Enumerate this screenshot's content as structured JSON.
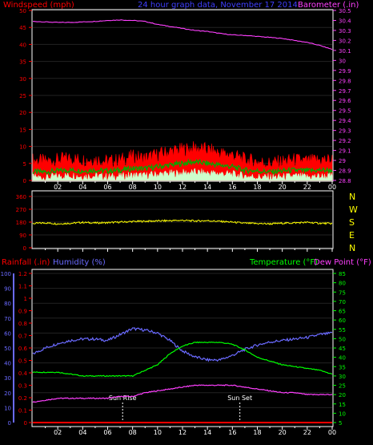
{
  "chart_data": [
    {
      "type": "line",
      "panel": "wind-barometer",
      "title": "24 hour graph data, November 17 2014",
      "left_axis_label": "Windspeed (mph)",
      "right_axis_label": "Barometer (.in)",
      "x_ticks": [
        "02",
        "04",
        "06",
        "08",
        "10",
        "12",
        "14",
        "16",
        "18",
        "20",
        "22",
        "00"
      ],
      "ylim_left": [
        0,
        50
      ],
      "left_ticks": [
        0,
        5,
        10,
        15,
        20,
        25,
        30,
        35,
        40,
        45,
        50
      ],
      "ylim_right": [
        28.8,
        30.5
      ],
      "right_ticks": [
        "28.8",
        "28.9",
        "29",
        "29.1",
        "29.2",
        "29.3",
        "29.4",
        "29.5",
        "29.6",
        "29.7",
        "29.8",
        "29.9",
        "30",
        "30.1",
        "30.2",
        "30.3",
        "30.4",
        "30.5"
      ],
      "x_hours": [
        0,
        1,
        2,
        3,
        4,
        5,
        6,
        7,
        8,
        9,
        10,
        11,
        12,
        13,
        14,
        15,
        16,
        17,
        18,
        19,
        20,
        21,
        22,
        23,
        24
      ],
      "series": [
        {
          "key": "barometer",
          "axis": "right",
          "color": "#ff40ff",
          "values": [
            30.39,
            30.385,
            30.38,
            30.38,
            30.385,
            30.39,
            30.4,
            30.405,
            30.4,
            30.39,
            30.36,
            30.34,
            30.32,
            30.3,
            30.29,
            30.27,
            30.255,
            30.25,
            30.24,
            30.23,
            30.22,
            30.2,
            30.18,
            30.15,
            30.11
          ]
        },
        {
          "key": "gust",
          "axis": "left",
          "color": "#ff0000",
          "values": [
            6,
            5.5,
            6,
            6.5,
            6,
            6.2,
            5.5,
            6,
            7,
            6.5,
            7.5,
            8.5,
            9,
            9.5,
            9,
            8,
            7.5,
            6,
            5.5,
            5,
            5.5,
            6,
            5.5,
            6,
            6
          ]
        },
        {
          "key": "average",
          "axis": "left",
          "color": "#00ff00",
          "values": [
            2.5,
            2.5,
            2.8,
            3,
            2.8,
            3,
            2.8,
            3,
            3.5,
            3.5,
            4,
            4.5,
            5,
            5.5,
            5,
            4.5,
            4,
            3,
            2.8,
            2.5,
            2.8,
            3,
            2.8,
            3,
            3
          ]
        },
        {
          "key": "lull",
          "axis": "left",
          "color": "#ccffcc",
          "values": [
            1,
            0.8,
            1.2,
            1.5,
            1.2,
            1.3,
            1,
            1.2,
            1.5,
            1.4,
            1.8,
            2,
            2.2,
            2.4,
            2.2,
            2,
            1.8,
            1.3,
            1,
            0.9,
            1,
            1.2,
            1,
            1.2,
            1.2
          ]
        }
      ]
    },
    {
      "type": "scatter",
      "panel": "wind-direction",
      "x_ticks": [
        "02",
        "04",
        "06",
        "08",
        "10",
        "12",
        "14",
        "16",
        "18",
        "20",
        "22",
        "00"
      ],
      "ylim": [
        0,
        360
      ],
      "left_ticks": [
        0,
        90,
        180,
        270,
        360
      ],
      "right_labels": [
        "N",
        "W",
        "S",
        "E",
        "N"
      ],
      "x_hours": [
        0,
        1,
        2,
        3,
        4,
        5,
        6,
        7,
        8,
        9,
        10,
        11,
        12,
        13,
        14,
        15,
        16,
        17,
        18,
        19,
        20,
        21,
        22,
        23,
        24
      ],
      "series": [
        {
          "key": "direction",
          "color": "#ffff00",
          "values": [
            170,
            175,
            168,
            172,
            178,
            174,
            176,
            180,
            184,
            186,
            188,
            190,
            192,
            188,
            190,
            185,
            180,
            172,
            170,
            168,
            172,
            175,
            178,
            172,
            170
          ]
        }
      ]
    },
    {
      "type": "line",
      "panel": "rain-humidity-temperature",
      "rainfall_label": "Rainfall (.in)",
      "humidity_label": "Humidity (%)",
      "temperature_label": "Temperature (°F)",
      "dewpoint_label": "Dew Point (°F)",
      "x_ticks": [
        "02",
        "04",
        "06",
        "08",
        "10",
        "12",
        "14",
        "16",
        "18",
        "20",
        "22",
        "00"
      ],
      "humidity_ticks": [
        0,
        10,
        20,
        30,
        40,
        50,
        60,
        70,
        80,
        90,
        100
      ],
      "ylim_humidity": [
        0,
        100
      ],
      "rain_ticks": [
        "0",
        "0.1",
        "0.2",
        "0.3",
        "0.4",
        "0.5",
        "0.6",
        "0.7",
        "0.8",
        "0.9",
        "1",
        "1.1",
        "1.2"
      ],
      "ylim_rain": [
        0,
        1.2
      ],
      "temp_ticks": [
        5,
        10,
        15,
        20,
        25,
        30,
        35,
        40,
        45,
        50,
        55,
        60,
        65,
        70,
        75,
        80,
        85
      ],
      "ylim_temp": [
        5,
        85
      ],
      "sun_rise_label": "Sun Rise",
      "sun_set_label": "Sun Set",
      "sun_rise_hour": 7.2,
      "sun_set_hour": 16.6,
      "x_hours": [
        0,
        1,
        2,
        3,
        4,
        5,
        6,
        7,
        8,
        9,
        10,
        11,
        12,
        13,
        14,
        15,
        16,
        17,
        18,
        19,
        20,
        21,
        22,
        23,
        24
      ],
      "series": [
        {
          "key": "humidity",
          "axis": "humidity",
          "color": "#6a6aff",
          "values": [
            46,
            50,
            53,
            55,
            56,
            56,
            55,
            59,
            63,
            62,
            60,
            55,
            48,
            44,
            42,
            42,
            45,
            49,
            52,
            54,
            55,
            56,
            57,
            59,
            60
          ]
        },
        {
          "key": "temperature",
          "axis": "temp",
          "color": "#00ff00",
          "values": [
            32,
            32,
            32,
            31,
            30,
            30,
            30,
            30,
            30,
            33,
            36,
            42,
            46,
            48,
            48,
            48,
            47,
            44,
            40,
            38,
            36,
            35,
            34,
            33,
            31
          ]
        },
        {
          "key": "dewpoint",
          "axis": "temp",
          "color": "#ff40ff",
          "values": [
            16,
            17,
            18,
            18,
            18,
            18,
            18,
            19,
            19,
            21,
            22,
            23,
            24,
            25,
            25,
            25,
            25,
            24,
            23,
            22,
            21,
            21,
            20,
            20,
            20
          ]
        },
        {
          "key": "rainfall",
          "axis": "rain",
          "color": "#ff0000",
          "values": [
            0,
            0,
            0,
            0,
            0,
            0,
            0,
            0,
            0,
            0,
            0,
            0,
            0,
            0,
            0,
            0,
            0,
            0,
            0,
            0,
            0,
            0,
            0,
            0,
            0
          ]
        }
      ]
    }
  ]
}
